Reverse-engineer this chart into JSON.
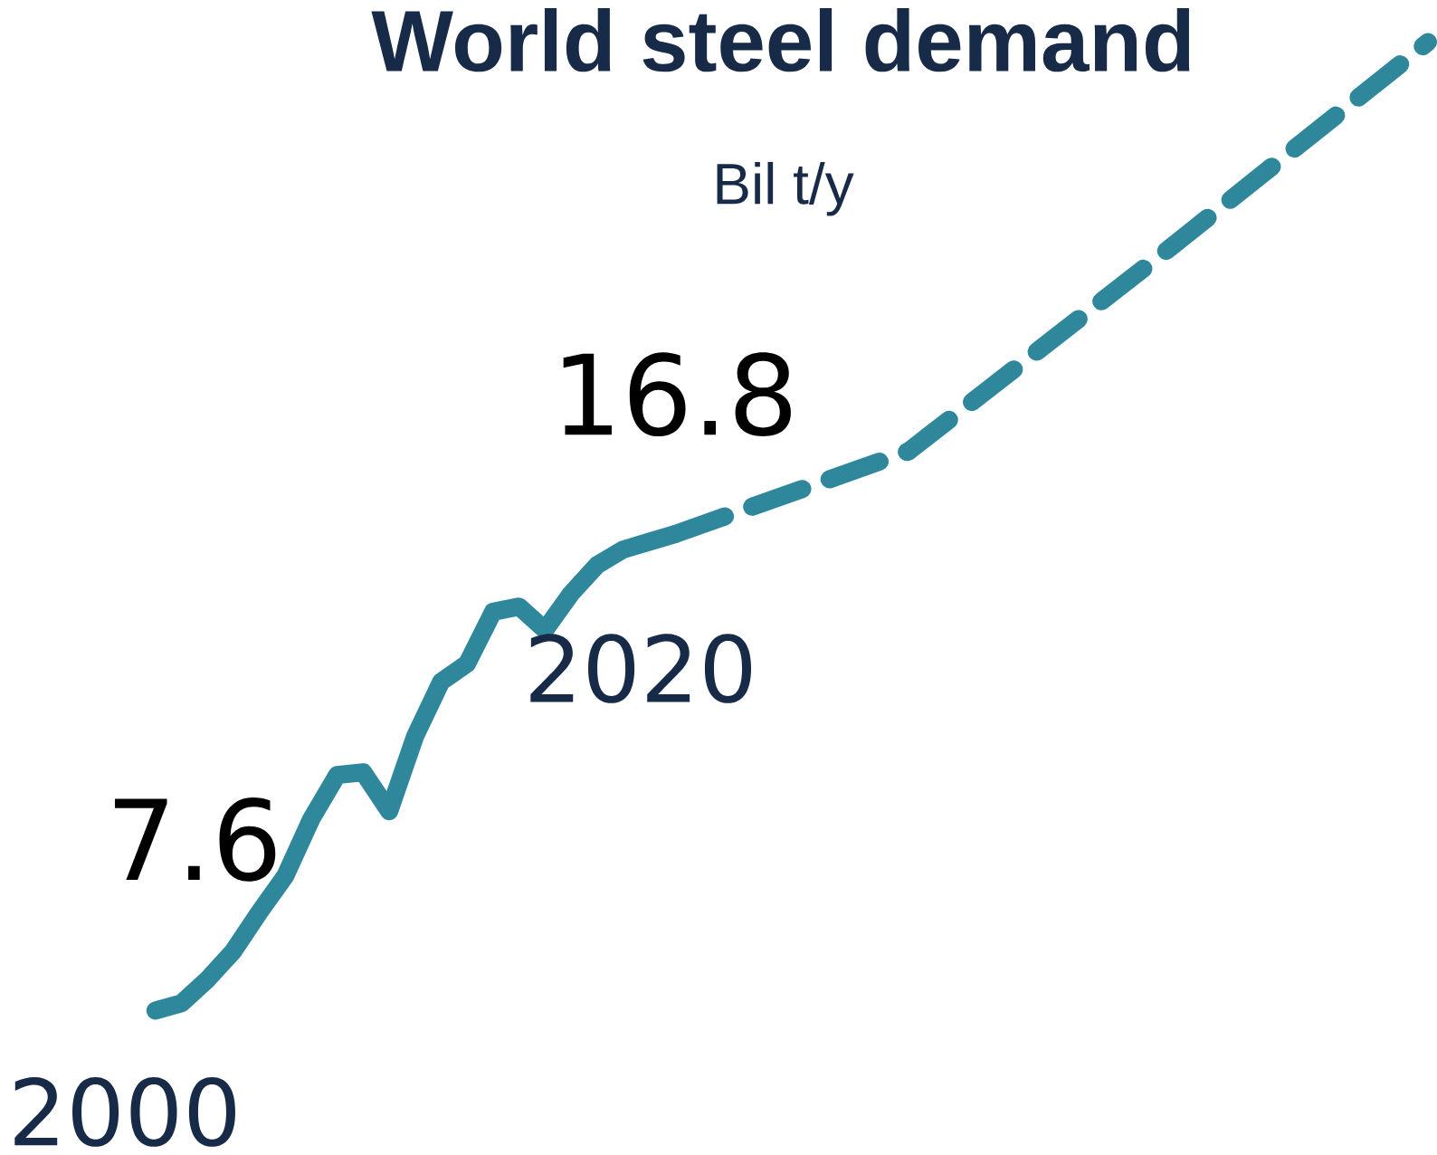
{
  "chart_data": {
    "type": "line",
    "title": "World steel demand",
    "subtitle": "Bil t/y",
    "categories": [
      null,
      null,
      null,
      null,
      null,
      null,
      null,
      null,
      null,
      null,
      null,
      null,
      null,
      null,
      null,
      null,
      null,
      null,
      null,
      null,
      null,
      null,
      null,
      null,
      null,
      null,
      null,
      null,
      null,
      null,
      null,
      null,
      null,
      null,
      null,
      null,
      null,
      null,
      null,
      null,
      null,
      null,
      null,
      null,
      null,
      null,
      null,
      null,
      null,
      null
    ],
    "marker": "none",
    "series": [
      {
        "color": "#2e879b",
        "line_style": "solid",
        "values": [
          7.6,
          7.74,
          8.2,
          8.75,
          9.5,
          10.2,
          11.3,
          12.15,
          12.2,
          11.45,
          12.9,
          13.95,
          14.3,
          15.3,
          15.4,
          14.95,
          15.65,
          16.2,
          16.5,
          16.65,
          16.8,
          null,
          null,
          null,
          null,
          null,
          null,
          null,
          null,
          null,
          null,
          null,
          null,
          null,
          null,
          null,
          null,
          null,
          null,
          null,
          null,
          null,
          null,
          null,
          null,
          null,
          null,
          null,
          null,
          null
        ],
        "value_labels": [
          "7.6",
          null,
          null,
          null,
          null,
          null,
          null,
          null,
          null,
          null,
          null,
          null,
          null,
          null,
          null,
          null,
          null,
          null,
          null,
          null,
          "16.8",
          null,
          null,
          null,
          null,
          null,
          null,
          null,
          null,
          null,
          null,
          null,
          null,
          null,
          null,
          null,
          null,
          null,
          null,
          null,
          null,
          null,
          null,
          null,
          null,
          null,
          null,
          null,
          null,
          null
        ]
      },
      {
        "color": "#2e879b",
        "line_style": "dashed",
        "values": [
          null,
          null,
          null,
          null,
          null,
          null,
          null,
          null,
          null,
          null,
          null,
          null,
          null,
          null,
          null,
          null,
          null,
          null,
          null,
          null,
          16.8,
          null,
          null,
          null,
          null,
          null,
          null,
          null,
          null,
          18.4,
          null,
          null,
          null,
          null,
          null,
          null,
          null,
          null,
          null,
          22.3,
          null,
          null,
          null,
          null,
          null,
          null,
          null,
          null,
          null,
          26.3
        ]
      }
    ],
    "annotations": [
      "2000",
      "2020"
    ]
  }
}
